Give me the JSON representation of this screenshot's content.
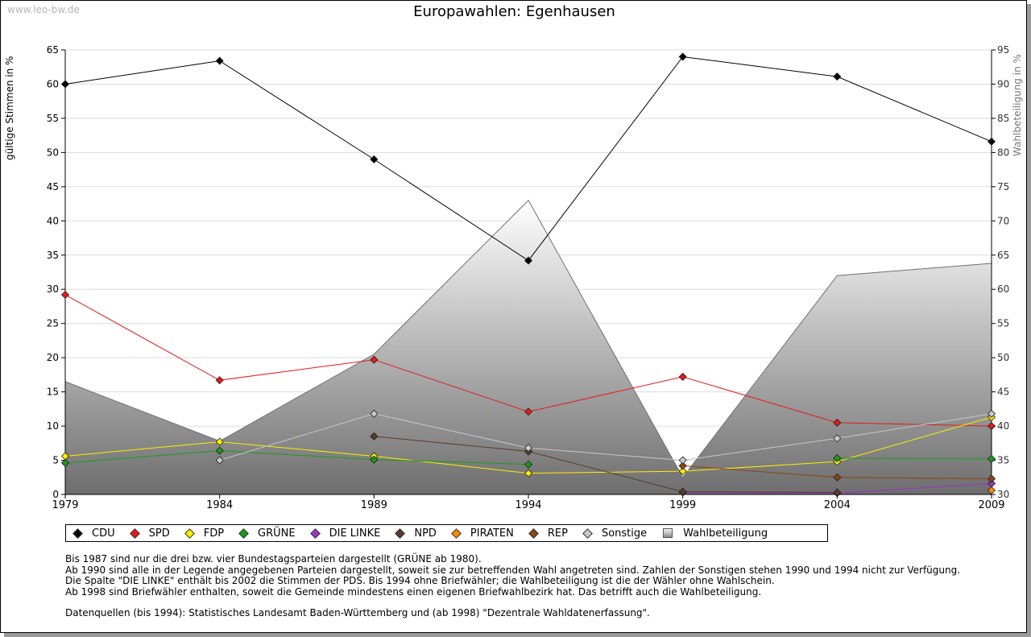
{
  "watermark": "www.leo-bw.de",
  "chart_data": {
    "type": "line",
    "title": "Europawahlen: Egenhausen",
    "ylabel": "gültige Stimmen in %",
    "y2label": "Wahlbeteiligung in %",
    "x": [
      "1979",
      "1984",
      "1989",
      "1994",
      "1999",
      "2004",
      "2009"
    ],
    "ylim": [
      0,
      65
    ],
    "yticks": [
      0,
      5,
      10,
      15,
      20,
      25,
      30,
      35,
      40,
      45,
      50,
      55,
      60,
      65
    ],
    "y2lim": [
      30,
      95
    ],
    "y2ticks": [
      30,
      35,
      40,
      45,
      50,
      55,
      60,
      65,
      70,
      75,
      80,
      85,
      90,
      95
    ],
    "grid": true,
    "legend_position": "bottom",
    "turnout": {
      "name": "Wahlbeteiligung",
      "values": [
        46.5,
        37.8,
        50.5,
        73.0,
        32.5,
        62.0,
        63.8
      ]
    },
    "series": [
      {
        "name": "CDU",
        "color": "#000000",
        "values": [
          60.0,
          63.4,
          49.0,
          34.2,
          64.0,
          61.1,
          51.6
        ]
      },
      {
        "name": "SPD",
        "color": "#e41a1c",
        "values": [
          29.2,
          16.7,
          19.7,
          12.1,
          17.2,
          10.5,
          10.0
        ]
      },
      {
        "name": "FDP",
        "color": "#ffee00",
        "values": [
          5.6,
          7.7,
          5.6,
          3.1,
          3.4,
          4.8,
          11.3
        ]
      },
      {
        "name": "GRÜNE",
        "color": "#1a9a1a",
        "values": [
          4.6,
          6.4,
          5.1,
          4.4,
          null,
          5.3,
          5.2
        ]
      },
      {
        "name": "DIE LINKE",
        "color": "#9933cc",
        "values": [
          null,
          null,
          null,
          null,
          0.3,
          0.2,
          1.6
        ]
      },
      {
        "name": "NPD",
        "color": "#5a3a2a",
        "values": [
          null,
          null,
          8.5,
          6.3,
          0.4,
          0.3,
          null
        ]
      },
      {
        "name": "PIRATEN",
        "color": "#ff8800",
        "values": [
          null,
          null,
          null,
          null,
          null,
          null,
          0.6
        ]
      },
      {
        "name": "REP",
        "color": "#8b4513",
        "values": [
          null,
          null,
          null,
          null,
          4.2,
          2.5,
          2.3
        ]
      },
      {
        "name": "Sonstige",
        "color": "#c8c8c8",
        "values": [
          null,
          5.0,
          11.8,
          6.8,
          5.0,
          8.2,
          11.8
        ]
      }
    ],
    "legend": [
      "CDU",
      "SPD",
      "FDP",
      "GRÜNE",
      "DIE LINKE",
      "NPD",
      "PIRATEN",
      "REP",
      "Sonstige",
      "Wahlbeteiligung"
    ]
  },
  "notes": [
    "Bis 1987 sind nur die drei bzw. vier Bundestagsparteien dargestellt (GRÜNE ab 1980).",
    "Ab 1990 sind alle in der Legende angegebenen Parteien dargestellt, soweit sie zur betreffenden Wahl angetreten sind. Zahlen der Sonstigen stehen 1990 und 1994 nicht zur Verfügung.",
    "Die Spalte \"DIE LINKE\" enthält bis 2002 die Stimmen der PDS. Bis 1994 ohne Briefwähler; die Wahlbeteiligung ist die der Wähler ohne Wahlschein.",
    "Ab 1998 sind Briefwähler enthalten, soweit die Gemeinde mindestens einen eigenen Briefwahlbezirk hat. Das betrifft auch die Wahlbeteiligung."
  ],
  "source": "Datenquellen (bis 1994): Statistisches Landesamt Baden-Württemberg und (ab 1998) \"Dezentrale Wahldatenerfassung\"."
}
